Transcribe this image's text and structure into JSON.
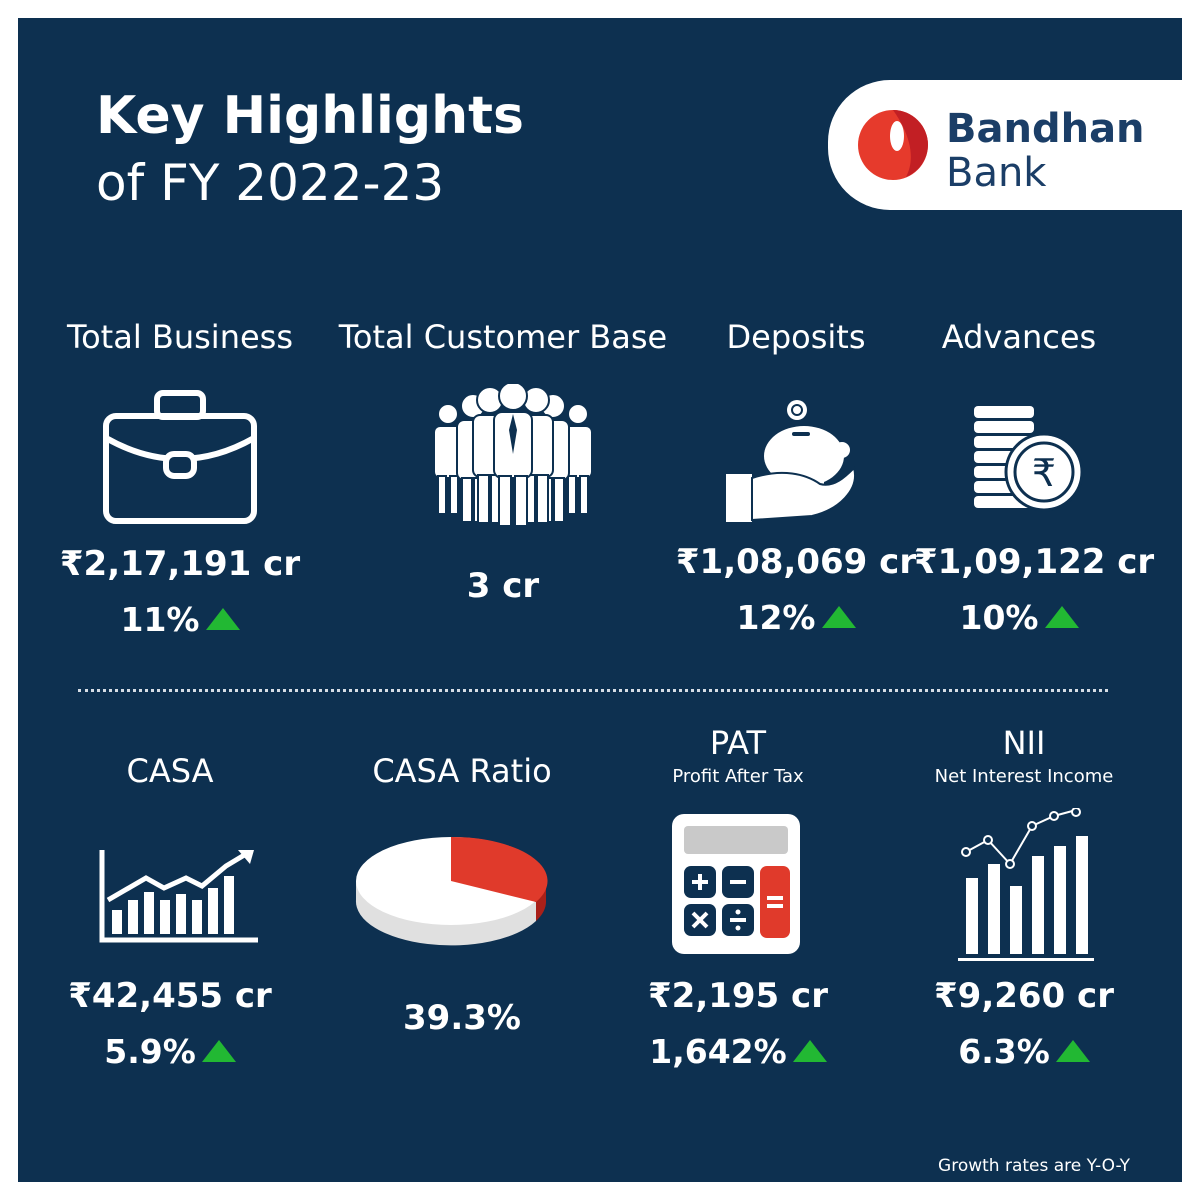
{
  "header": {
    "title_line1": "Key Highlights",
    "title_line2": "of FY 2022-23"
  },
  "brand": {
    "line1": "Bandhan",
    "line2": "Bank",
    "colors": {
      "primary": "#1b3e67",
      "accent": "#e63a2c",
      "background": "#0d3050",
      "growth": "#22b833"
    }
  },
  "metrics": [
    {
      "label": "Total Business",
      "icon": "briefcase-icon",
      "value": "₹2,17,191 cr",
      "growth": "11%"
    },
    {
      "label": "Total Customer Base",
      "icon": "people-icon",
      "value": "3 cr"
    },
    {
      "label": "Deposits",
      "icon": "piggy-bank-icon",
      "value": "₹1,08,069 cr",
      "growth": "12%"
    },
    {
      "label": "Advances",
      "icon": "rupee-coins-icon",
      "value": "₹1,09,122 cr",
      "growth": "10%"
    },
    {
      "label": "CASA",
      "icon": "growth-chart-icon",
      "value": "₹42,455 cr",
      "growth": "5.9%"
    },
    {
      "label": "CASA Ratio",
      "icon": "pie-chart-icon",
      "value": "39.3%"
    },
    {
      "label": "PAT",
      "sublabel": "Profit After Tax",
      "icon": "calculator-icon",
      "value": "₹2,195 cr",
      "growth": "1,642%"
    },
    {
      "label": "NII",
      "sublabel": "Net Interest Income",
      "icon": "bar-line-chart-icon",
      "value": "₹9,260 cr",
      "growth": "6.3%"
    }
  ],
  "footnote": "Growth rates are Y-O-Y"
}
